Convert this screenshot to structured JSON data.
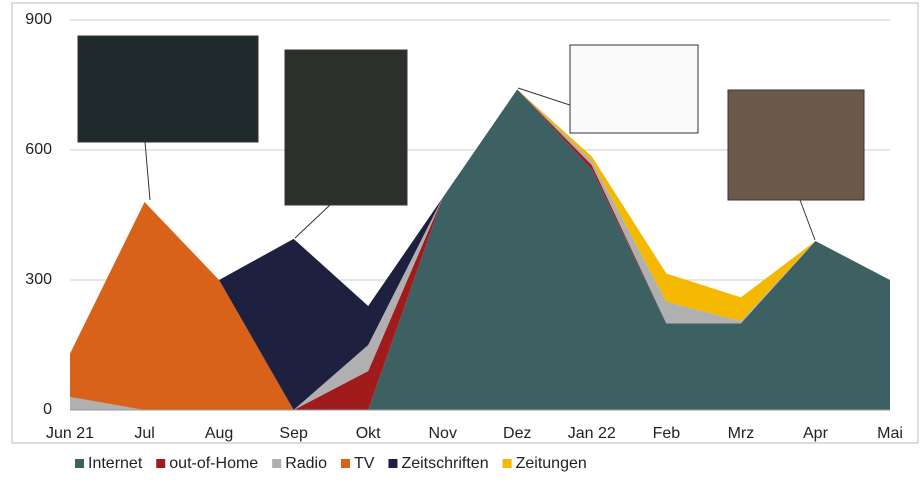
{
  "chart_data": {
    "type": "stacked-area",
    "categories": [
      "Jun 21",
      "Jul",
      "Aug",
      "Sep",
      "Okt",
      "Nov",
      "Dez",
      "Jan 22",
      "Feb",
      "Mrz",
      "Apr",
      "Mai"
    ],
    "series": [
      {
        "name": "Internet",
        "color": "#3d6163",
        "values": [
          0,
          0,
          0,
          0,
          0,
          490,
          740,
          555,
          200,
          200,
          390,
          300
        ]
      },
      {
        "name": "out-of-Home",
        "color": "#a01c1c",
        "values": [
          0,
          0,
          0,
          0,
          90,
          0,
          0,
          10,
          0,
          0,
          0,
          0
        ]
      },
      {
        "name": "Radio",
        "color": "#b0b0b0",
        "values": [
          30,
          0,
          0,
          0,
          60,
          0,
          0,
          10,
          50,
          5,
          0,
          0
        ]
      },
      {
        "name": "TV",
        "color": "#d9621a",
        "values": [
          100,
          480,
          300,
          0,
          0,
          0,
          0,
          0,
          0,
          0,
          0,
          0
        ]
      },
      {
        "name": "Zeitschriften",
        "color": "#1e2040",
        "values": [
          0,
          0,
          0,
          395,
          90,
          0,
          0,
          0,
          0,
          0,
          0,
          0
        ]
      },
      {
        "name": "Zeitungen",
        "color": "#f5b800",
        "values": [
          0,
          0,
          0,
          0,
          0,
          0,
          0,
          10,
          65,
          55,
          0,
          0
        ]
      }
    ],
    "ylim": [
      0,
      900
    ],
    "yticks": [
      0,
      300,
      600,
      900
    ],
    "grid": true
  }
}
